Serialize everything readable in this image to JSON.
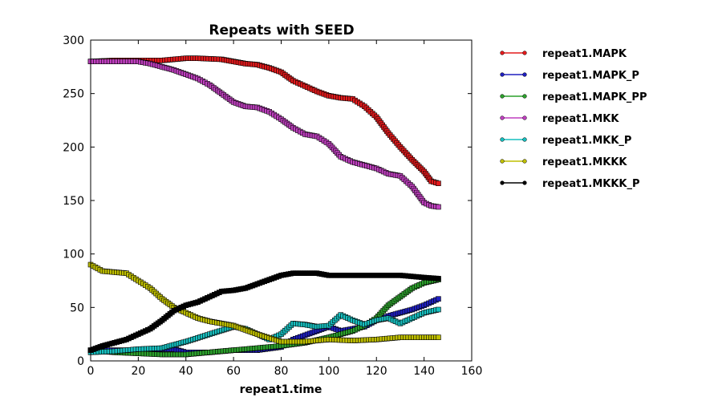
{
  "chart_data": {
    "type": "line",
    "title": "Repeats with SEED",
    "xlabel": "repeat1.time",
    "ylabel": "",
    "xlim": [
      0,
      160
    ],
    "ylim": [
      0,
      300
    ],
    "xticks": [
      "0",
      "20",
      "40",
      "60",
      "80",
      "100",
      "120",
      "140",
      "160"
    ],
    "yticks": [
      "0",
      "50",
      "100",
      "150",
      "200",
      "250",
      "300"
    ],
    "grid": false,
    "legend_position": "outside-right",
    "series": [
      {
        "name": "repeat1.MAPK",
        "color": "#e41a1c",
        "x": [
          0,
          10,
          20,
          30,
          40,
          45,
          55,
          60,
          65,
          70,
          75,
          80,
          85,
          90,
          95,
          100,
          105,
          110,
          115,
          120,
          125,
          130,
          135,
          140,
          143,
          146
        ],
        "y": [
          280,
          281,
          281,
          281,
          283,
          283,
          282,
          280,
          278,
          277,
          274,
          270,
          262,
          257,
          252,
          248,
          246,
          245,
          238,
          228,
          213,
          200,
          188,
          177,
          168,
          166
        ]
      },
      {
        "name": "repeat1.MAPK_P",
        "color": "#1f1fbf",
        "x": [
          0,
          10,
          20,
          30,
          35,
          40,
          50,
          60,
          70,
          80,
          85,
          90,
          100,
          105,
          110,
          115,
          120,
          125,
          130,
          135,
          140,
          146
        ],
        "y": [
          10,
          10,
          10,
          11,
          11,
          8,
          8,
          10,
          10,
          13,
          20,
          24,
          32,
          28,
          30,
          32,
          38,
          42,
          45,
          48,
          52,
          58
        ]
      },
      {
        "name": "repeat1.MAPK_PP",
        "color": "#2ca02c",
        "x": [
          0,
          10,
          20,
          30,
          40,
          50,
          60,
          70,
          80,
          90,
          100,
          110,
          115,
          120,
          125,
          130,
          135,
          140,
          146
        ],
        "y": [
          10,
          8,
          7,
          6,
          6,
          8,
          10,
          12,
          14,
          17,
          22,
          28,
          33,
          40,
          52,
          60,
          68,
          73,
          76
        ]
      },
      {
        "name": "repeat1.MKK",
        "color": "#bf3fbf",
        "x": [
          0,
          10,
          20,
          25,
          30,
          35,
          40,
          45,
          50,
          55,
          60,
          65,
          70,
          75,
          80,
          85,
          90,
          95,
          100,
          105,
          110,
          115,
          120,
          125,
          130,
          135,
          140,
          143,
          146
        ],
        "y": [
          280,
          280,
          280,
          278,
          275,
          272,
          268,
          264,
          258,
          250,
          242,
          238,
          237,
          233,
          226,
          218,
          212,
          210,
          203,
          191,
          186,
          183,
          180,
          175,
          173,
          163,
          148,
          145,
          144
        ]
      },
      {
        "name": "repeat1.MKK_P",
        "color": "#17bfbf",
        "x": [
          0,
          10,
          20,
          30,
          40,
          50,
          60,
          65,
          70,
          75,
          80,
          85,
          90,
          95,
          100,
          105,
          110,
          115,
          120,
          125,
          130,
          135,
          140,
          146
        ],
        "y": [
          8,
          9,
          11,
          12,
          18,
          25,
          32,
          30,
          25,
          20,
          25,
          35,
          34,
          32,
          33,
          43,
          38,
          34,
          38,
          40,
          35,
          40,
          45,
          48
        ]
      },
      {
        "name": "repeat1.MKKK",
        "color": "#bfbf00",
        "x": [
          0,
          5,
          10,
          15,
          20,
          25,
          30,
          35,
          40,
          45,
          50,
          55,
          60,
          70,
          80,
          90,
          100,
          110,
          120,
          130,
          140,
          146
        ],
        "y": [
          90,
          84,
          83,
          82,
          75,
          68,
          58,
          50,
          45,
          40,
          37,
          35,
          33,
          25,
          18,
          18,
          20,
          19,
          20,
          22,
          22,
          22
        ]
      },
      {
        "name": "repeat1.MKKK_P",
        "color": "#000000",
        "x": [
          0,
          5,
          10,
          15,
          20,
          25,
          30,
          35,
          40,
          45,
          50,
          55,
          60,
          65,
          70,
          75,
          80,
          85,
          90,
          95,
          100,
          110,
          120,
          130,
          140,
          146
        ],
        "y": [
          10,
          14,
          17,
          20,
          25,
          30,
          38,
          47,
          52,
          55,
          60,
          65,
          66,
          68,
          72,
          76,
          80,
          82,
          82,
          82,
          80,
          80,
          80,
          80,
          78,
          77
        ]
      }
    ]
  }
}
